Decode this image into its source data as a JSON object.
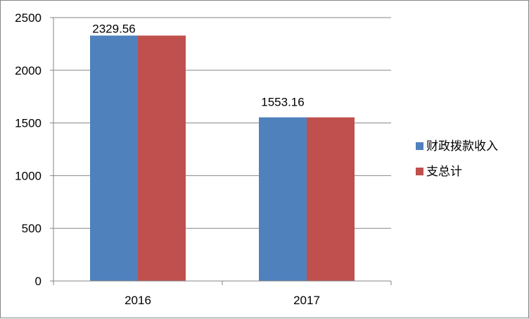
{
  "chart_data": {
    "type": "bar",
    "categories": [
      "2016",
      "2017"
    ],
    "series": [
      {
        "name": "财政拨款收入",
        "values": [
          2329.56,
          1553.16
        ],
        "color": "#4F81BD"
      },
      {
        "name": "支总计",
        "values": [
          2329.56,
          1553.16
        ],
        "color": "#C0504D"
      }
    ],
    "data_labels": [
      "2329.56",
      "1553.16"
    ],
    "yticks": [
      "0",
      "500",
      "1000",
      "1500",
      "2000",
      "2500"
    ],
    "ylim": [
      0,
      2500
    ],
    "grid": true,
    "legend_position": "right",
    "title": "",
    "xlabel": "",
    "ylabel": ""
  }
}
